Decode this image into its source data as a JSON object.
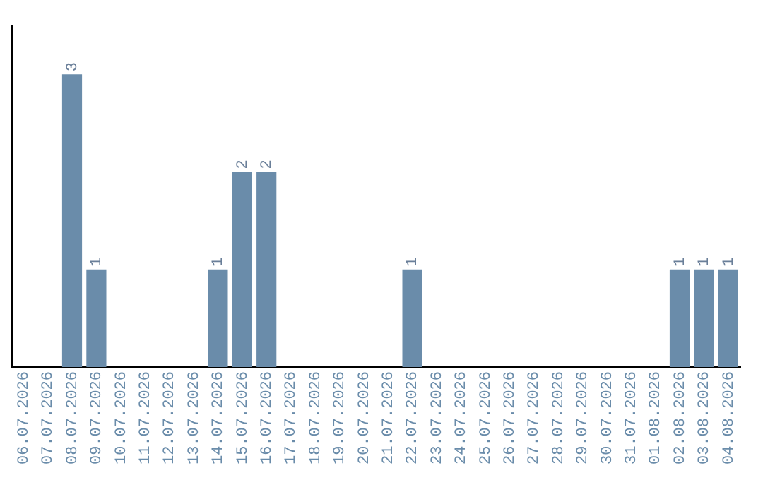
{
  "chart_data": {
    "type": "bar",
    "categories": [
      "06.07.2026",
      "07.07.2026",
      "08.07.2026",
      "09.07.2026",
      "10.07.2026",
      "11.07.2026",
      "12.07.2026",
      "13.07.2026",
      "14.07.2026",
      "15.07.2026",
      "16.07.2026",
      "17.07.2026",
      "18.07.2026",
      "19.07.2026",
      "20.07.2026",
      "21.07.2026",
      "22.07.2026",
      "23.07.2026",
      "24.07.2026",
      "25.07.2026",
      "26.07.2026",
      "27.07.2026",
      "28.07.2026",
      "29.07.2026",
      "30.07.2026",
      "31.07.2026",
      "01.08.2026",
      "02.08.2026",
      "03.08.2026",
      "04.08.2026"
    ],
    "values": [
      0,
      0,
      3,
      1,
      0,
      0,
      0,
      0,
      1,
      2,
      2,
      0,
      0,
      0,
      0,
      0,
      1,
      0,
      0,
      0,
      0,
      0,
      0,
      0,
      0,
      0,
      0,
      1,
      1,
      1
    ],
    "value_labels": [
      null,
      null,
      "3",
      "1",
      null,
      null,
      null,
      null,
      "1",
      "2",
      "2",
      null,
      null,
      null,
      null,
      null,
      "1",
      null,
      null,
      null,
      null,
      null,
      null,
      null,
      null,
      null,
      null,
      "1",
      "1",
      "1"
    ],
    "color": "#6a8caa",
    "tick_labels": "x",
    "grid": false,
    "legend": false
  }
}
